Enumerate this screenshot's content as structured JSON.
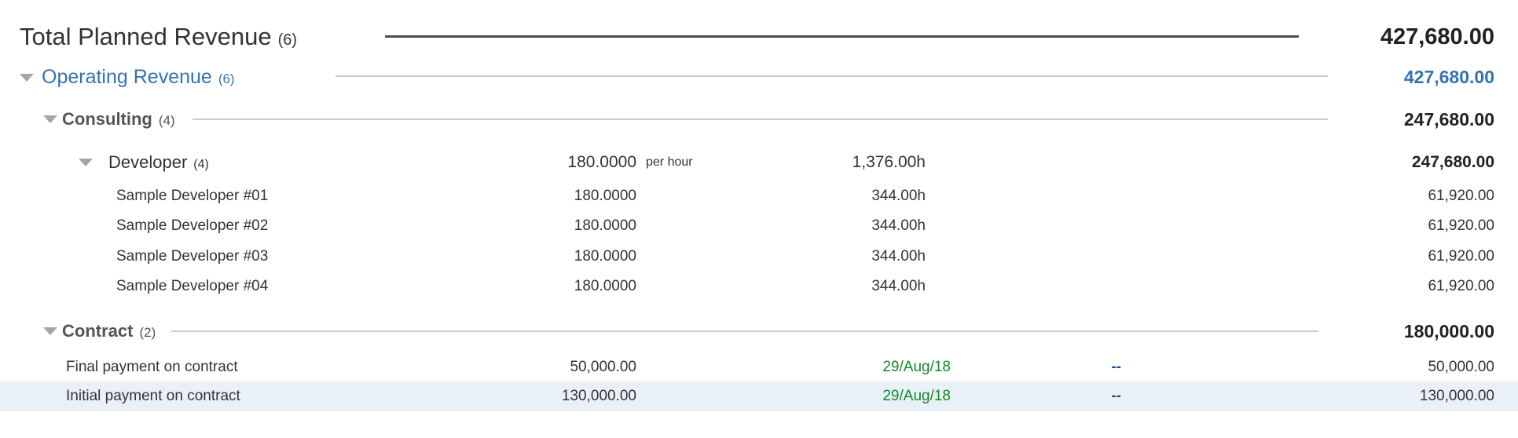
{
  "colors": {
    "accent-blue": "#3572b0",
    "header-gray": "#555555",
    "text-dark": "#333333",
    "value-dark": "#222222",
    "date-green": "#14892c",
    "dash-blue": "#205081",
    "row-highlight": "#e9f0f8",
    "line-light": "#cccccc",
    "line-dark": "#4d4d4d",
    "triangle-gray": "#a5a5a5"
  },
  "rows": [
    {
      "label": "Total Planned Revenue",
      "count": "(6)",
      "amount": "427,680.00"
    },
    {
      "label": "Operating Revenue",
      "count": "(6)",
      "amount": "427,680.00"
    },
    {
      "label": "Consulting",
      "count": "(4)",
      "amount": "247,680.00"
    },
    {
      "label": "Developer",
      "count": "(4)",
      "rate": "180.0000",
      "rate_suffix": "per hour",
      "hours": "1,376.00h",
      "amount": "247,680.00"
    },
    {
      "label": "Sample Developer #01",
      "rate": "180.0000",
      "hours": "344.00h",
      "amount": "61,920.00"
    },
    {
      "label": "Sample Developer #02",
      "rate": "180.0000",
      "hours": "344.00h",
      "amount": "61,920.00"
    },
    {
      "label": "Sample Developer #03",
      "rate": "180.0000",
      "hours": "344.00h",
      "amount": "61,920.00"
    },
    {
      "label": "Sample Developer #04",
      "rate": "180.0000",
      "hours": "344.00h",
      "amount": "61,920.00"
    },
    {
      "label": "Contract",
      "count": "(2)",
      "amount": "180,000.00"
    },
    {
      "label": "Final payment on contract",
      "value": "50,000.00",
      "date": "29/Aug/18",
      "dash": "--",
      "amount": "50,000.00"
    },
    {
      "label": "Initial payment on contract",
      "value": "130,000.00",
      "date": "29/Aug/18",
      "dash": "--",
      "amount": "130,000.00"
    }
  ]
}
